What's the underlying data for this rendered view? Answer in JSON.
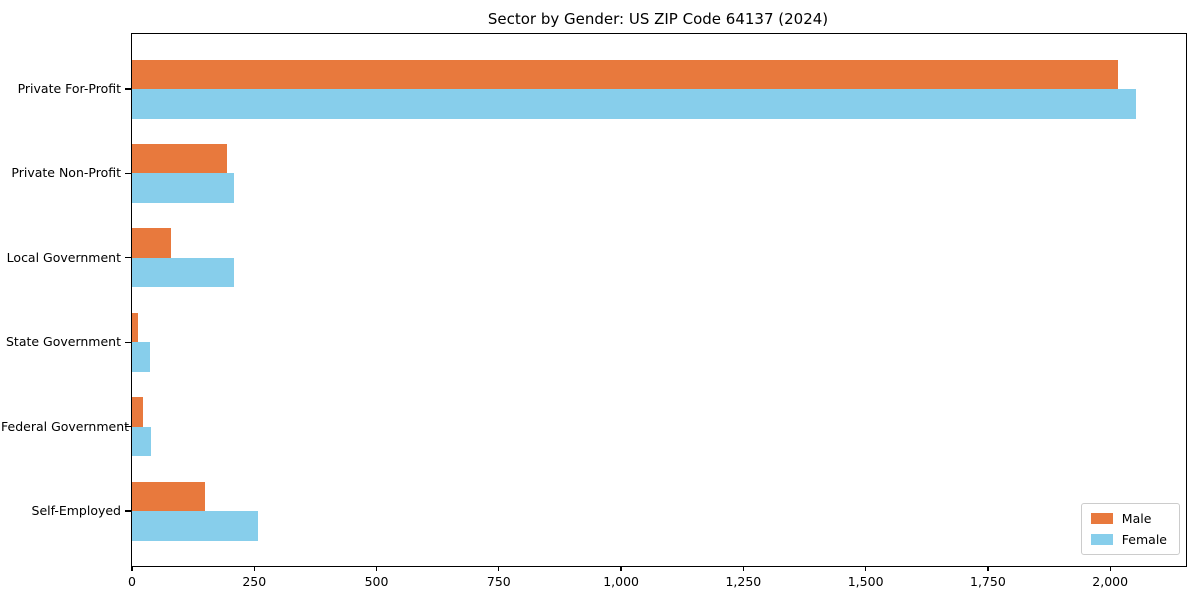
{
  "title": "Sector by Gender: US ZIP Code 64137 (2024)",
  "colors": {
    "male": "#e8793d",
    "female": "#87ceeb",
    "frame": "#000000",
    "text": "#000000",
    "legend_border": "#cccccc",
    "background": "#ffffff"
  },
  "chart_data": {
    "type": "bar",
    "orientation": "horizontal",
    "title": "Sector by Gender: US ZIP Code 64137 (2024)",
    "categories": [
      "Private For-Profit",
      "Private Non-Profit",
      "Local Government",
      "State Government",
      "Federal Government",
      "Self-Employed"
    ],
    "series": [
      {
        "name": "Male",
        "color": "#e8793d",
        "values": [
          2015,
          194,
          80,
          12,
          22,
          150
        ]
      },
      {
        "name": "Female",
        "color": "#87ceeb",
        "values": [
          2052,
          209,
          209,
          37,
          39,
          257
        ]
      }
    ],
    "xlabel": "",
    "ylabel": "",
    "xlim": [
      0,
      2155
    ],
    "x_ticks": [
      0,
      250,
      500,
      750,
      1000,
      1250,
      1500,
      1750,
      2000
    ],
    "x_tick_labels": [
      "0",
      "250",
      "500",
      "750",
      "1,000",
      "1,250",
      "1,500",
      "1,750",
      "2,000"
    ],
    "grid": false,
    "legend_position": "lower right",
    "legend_entries": [
      "Male",
      "Female"
    ]
  }
}
